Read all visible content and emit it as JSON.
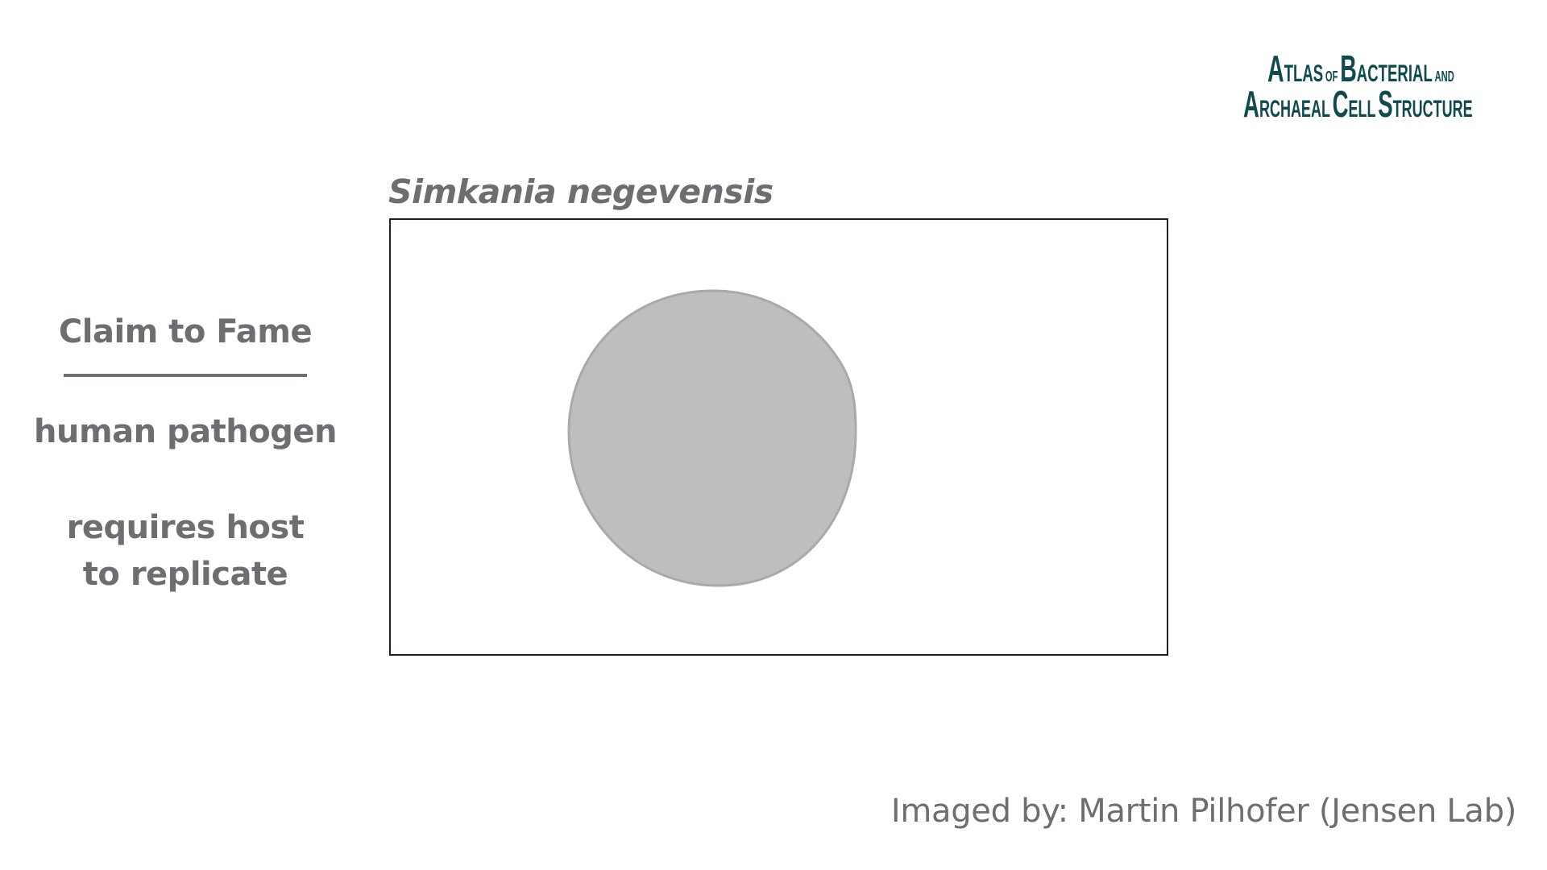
{
  "logo": {
    "line1_big": "A",
    "line1_rest": "TLAS",
    "line1_of": "OF",
    "line1_b": "B",
    "line1_acterial": "ACTERIAL",
    "line1_and": "AND",
    "line2_a": "A",
    "line2_rchaeal": "RCHAEAL",
    "line2_c": "C",
    "line2_ell": "ELL",
    "line2_s": "S",
    "line2_tructure": "TRUCTURE"
  },
  "species": {
    "name": "Simkania negevensis"
  },
  "claim": {
    "heading": "Claim to Fame",
    "fact1": "human pathogen",
    "fact2_line1": "requires host",
    "fact2_line2": "to replicate"
  },
  "credit": {
    "text": "Imaged by: Martin Pilhofer (Jensen Lab)"
  },
  "colors": {
    "text_gray": "#6d6e71",
    "logo_teal": "#0f4a4f",
    "cell_fill": "#bcbec0",
    "cell_stroke": "#a7a9ac",
    "frame_border": "#231f20"
  }
}
